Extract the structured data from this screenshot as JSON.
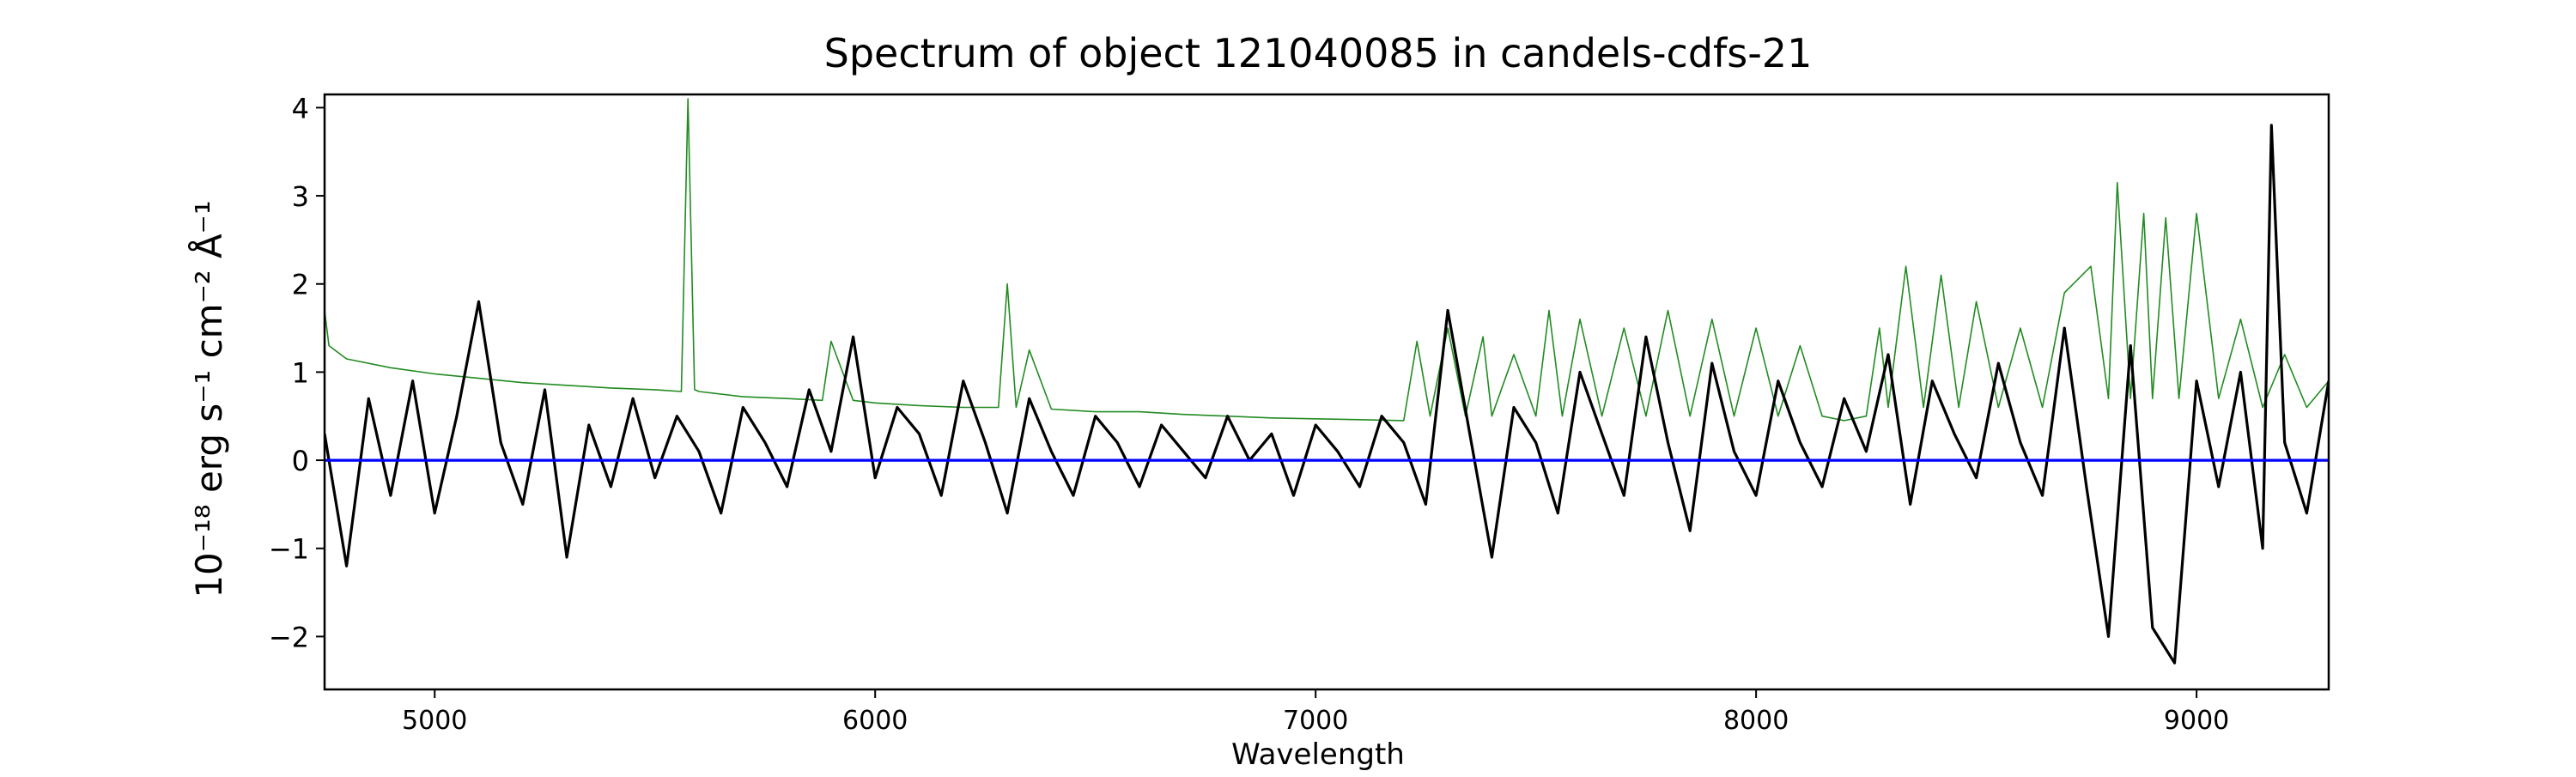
{
  "chart_data": {
    "type": "line",
    "title": "Spectrum of object 121040085 in candels-cdfs-21",
    "xlabel": "Wavelength",
    "ylabel": "10⁻¹⁸ erg s⁻¹ cm⁻² Å⁻¹",
    "xlim": [
      4750,
      9300
    ],
    "ylim": [
      -2.6,
      4.15
    ],
    "x_ticks": [
      5000,
      6000,
      7000,
      8000,
      9000
    ],
    "y_ticks": [
      -2,
      -1,
      0,
      1,
      2,
      3,
      4
    ],
    "grid": false,
    "colors": {
      "flux": "#000000",
      "noise": "#228b22",
      "zero": "#0000ff"
    },
    "series": [
      {
        "role": "flux",
        "x": [
          4750,
          4800,
          4850,
          4900,
          4950,
          5000,
          5050,
          5100,
          5150,
          5200,
          5250,
          5300,
          5350,
          5400,
          5450,
          5500,
          5550,
          5600,
          5650,
          5700,
          5750,
          5800,
          5850,
          5900,
          5950,
          6000,
          6050,
          6100,
          6150,
          6200,
          6250,
          6300,
          6350,
          6400,
          6450,
          6500,
          6550,
          6600,
          6650,
          6700,
          6750,
          6800,
          6850,
          6900,
          6950,
          7000,
          7050,
          7100,
          7150,
          7200,
          7250,
          7300,
          7350,
          7400,
          7450,
          7500,
          7550,
          7600,
          7650,
          7700,
          7750,
          7800,
          7850,
          7900,
          7950,
          8000,
          8050,
          8100,
          8150,
          8200,
          8250,
          8300,
          8350,
          8400,
          8450,
          8500,
          8550,
          8600,
          8650,
          8700,
          8750,
          8800,
          8850,
          8900,
          8950,
          9000,
          9050,
          9100,
          9150,
          9170,
          9200,
          9250,
          9300
        ],
        "y": [
          0.3,
          -1.2,
          0.7,
          -0.4,
          0.9,
          -0.6,
          0.5,
          1.8,
          0.2,
          -0.5,
          0.8,
          -1.1,
          0.4,
          -0.3,
          0.7,
          -0.2,
          0.5,
          0.1,
          -0.6,
          0.6,
          0.2,
          -0.3,
          0.8,
          0.1,
          1.4,
          -0.2,
          0.6,
          0.3,
          -0.4,
          0.9,
          0.2,
          -0.6,
          0.7,
          0.1,
          -0.4,
          0.5,
          0.2,
          -0.3,
          0.4,
          0.1,
          -0.2,
          0.5,
          0.0,
          0.3,
          -0.4,
          0.4,
          0.1,
          -0.3,
          0.5,
          0.2,
          -0.5,
          1.7,
          0.3,
          -1.1,
          0.6,
          0.2,
          -0.6,
          1.0,
          0.3,
          -0.4,
          1.4,
          0.2,
          -0.8,
          1.1,
          0.1,
          -0.4,
          0.9,
          0.2,
          -0.3,
          0.7,
          0.1,
          1.2,
          -0.5,
          0.9,
          0.3,
          -0.2,
          1.1,
          0.2,
          -0.4,
          1.5,
          -0.3,
          -2.0,
          1.3,
          -1.9,
          -2.3,
          0.9,
          -0.3,
          1.0,
          -1.0,
          3.8,
          0.2,
          -0.6,
          0.9
        ]
      },
      {
        "role": "noise",
        "x": [
          4750,
          4760,
          4800,
          4900,
          5000,
          5100,
          5200,
          5300,
          5400,
          5500,
          5560,
          5575,
          5590,
          5600,
          5700,
          5800,
          5880,
          5900,
          5950,
          6000,
          6100,
          6200,
          6280,
          6300,
          6320,
          6350,
          6400,
          6500,
          6600,
          6700,
          6800,
          6900,
          7000,
          7100,
          7200,
          7230,
          7260,
          7300,
          7340,
          7380,
          7400,
          7450,
          7500,
          7530,
          7560,
          7600,
          7650,
          7700,
          7750,
          7800,
          7850,
          7900,
          7950,
          8000,
          8050,
          8100,
          8150,
          8200,
          8250,
          8280,
          8300,
          8340,
          8380,
          8420,
          8460,
          8500,
          8550,
          8600,
          8650,
          8700,
          8760,
          8800,
          8820,
          8850,
          8880,
          8900,
          8930,
          8960,
          9000,
          9050,
          9100,
          9150,
          9200,
          9250,
          9300
        ],
        "y": [
          1.7,
          1.3,
          1.15,
          1.05,
          0.98,
          0.93,
          0.88,
          0.85,
          0.82,
          0.8,
          0.78,
          4.1,
          0.8,
          0.78,
          0.72,
          0.7,
          0.68,
          1.35,
          0.68,
          0.65,
          0.62,
          0.6,
          0.6,
          2.0,
          0.6,
          1.25,
          0.58,
          0.55,
          0.55,
          0.52,
          0.5,
          0.48,
          0.47,
          0.46,
          0.45,
          1.35,
          0.5,
          1.5,
          0.5,
          1.4,
          0.5,
          1.2,
          0.5,
          1.7,
          0.5,
          1.6,
          0.5,
          1.5,
          0.5,
          1.7,
          0.5,
          1.6,
          0.5,
          1.5,
          0.5,
          1.3,
          0.5,
          0.45,
          0.5,
          1.5,
          0.6,
          2.2,
          0.6,
          2.1,
          0.6,
          1.8,
          0.6,
          1.5,
          0.6,
          1.9,
          2.2,
          0.7,
          3.15,
          0.7,
          2.8,
          0.7,
          2.75,
          0.7,
          2.8,
          0.7,
          1.6,
          0.6,
          1.2,
          0.6,
          0.9
        ]
      },
      {
        "role": "zero",
        "x": [
          4750,
          9300
        ],
        "y": [
          0,
          0
        ]
      }
    ]
  }
}
